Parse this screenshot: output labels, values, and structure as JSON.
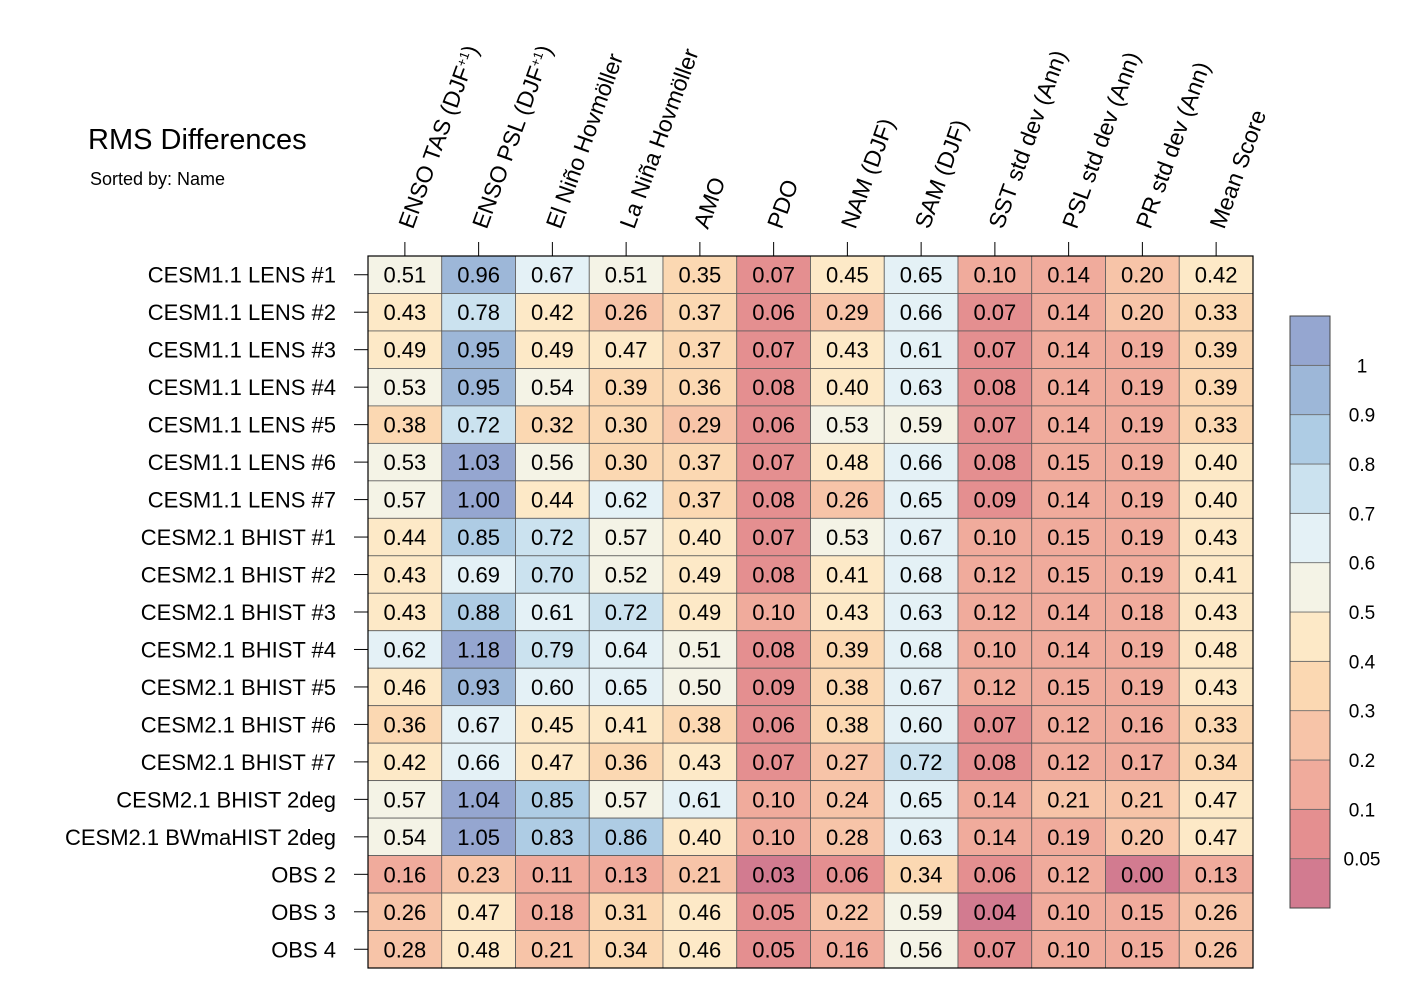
{
  "chart_data": {
    "type": "heatmap",
    "title": "RMS Differences",
    "subtitle": "Sorted by: Name",
    "columns": [
      "ENSO TAS (DJF+1)",
      "ENSO PSL (DJF+1)",
      "El Niño Hovmöller",
      "La Niña Hovmöller",
      "AMO",
      "PDO",
      "NAM (DJF)",
      "SAM (DJF)",
      "SST std dev (Ann)",
      "PSL std dev (Ann)",
      "PR std dev (Ann)",
      "Mean Score"
    ],
    "columns_display": [
      {
        "base": "ENSO TAS (DJF",
        "sup": "+1",
        "tail": ")"
      },
      {
        "base": "ENSO PSL (DJF",
        "sup": "+1",
        "tail": ")"
      },
      {
        "base": "El Niño Hovmöller",
        "sup": "",
        "tail": ""
      },
      {
        "base": "La Niña Hovmöller",
        "sup": "",
        "tail": ""
      },
      {
        "base": "AMO",
        "sup": "",
        "tail": ""
      },
      {
        "base": "PDO",
        "sup": "",
        "tail": ""
      },
      {
        "base": "NAM (DJF)",
        "sup": "",
        "tail": ""
      },
      {
        "base": "SAM (DJF)",
        "sup": "",
        "tail": ""
      },
      {
        "base": "SST std dev (Ann)",
        "sup": "",
        "tail": ""
      },
      {
        "base": "PSL std dev (Ann)",
        "sup": "",
        "tail": ""
      },
      {
        "base": "PR std dev (Ann)",
        "sup": "",
        "tail": ""
      },
      {
        "base": "Mean Score",
        "sup": "",
        "tail": ""
      }
    ],
    "rows": [
      "CESM1.1 LENS #1",
      "CESM1.1 LENS #2",
      "CESM1.1 LENS #3",
      "CESM1.1 LENS #4",
      "CESM1.1 LENS #5",
      "CESM1.1 LENS #6",
      "CESM1.1 LENS #7",
      "CESM2.1 BHIST #1",
      "CESM2.1 BHIST #2",
      "CESM2.1 BHIST #3",
      "CESM2.1 BHIST #4",
      "CESM2.1 BHIST #5",
      "CESM2.1 BHIST #6",
      "CESM2.1 BHIST #7",
      "CESM2.1 BHIST 2deg",
      "CESM2.1 BWmaHIST 2deg",
      "OBS 2",
      "OBS 3",
      "OBS 4"
    ],
    "values": [
      [
        "0.51",
        "0.96",
        "0.67",
        "0.51",
        "0.35",
        "0.07",
        "0.45",
        "0.65",
        "0.10",
        "0.14",
        "0.20",
        "0.42"
      ],
      [
        "0.43",
        "0.78",
        "0.42",
        "0.26",
        "0.37",
        "0.06",
        "0.29",
        "0.66",
        "0.07",
        "0.14",
        "0.20",
        "0.33"
      ],
      [
        "0.49",
        "0.95",
        "0.49",
        "0.47",
        "0.37",
        "0.07",
        "0.43",
        "0.61",
        "0.07",
        "0.14",
        "0.19",
        "0.39"
      ],
      [
        "0.53",
        "0.95",
        "0.54",
        "0.39",
        "0.36",
        "0.08",
        "0.40",
        "0.63",
        "0.08",
        "0.14",
        "0.19",
        "0.39"
      ],
      [
        "0.38",
        "0.72",
        "0.32",
        "0.30",
        "0.29",
        "0.06",
        "0.53",
        "0.59",
        "0.07",
        "0.14",
        "0.19",
        "0.33"
      ],
      [
        "0.53",
        "1.03",
        "0.56",
        "0.30",
        "0.37",
        "0.07",
        "0.48",
        "0.66",
        "0.08",
        "0.15",
        "0.19",
        "0.40"
      ],
      [
        "0.57",
        "1.00",
        "0.44",
        "0.62",
        "0.37",
        "0.08",
        "0.26",
        "0.65",
        "0.09",
        "0.14",
        "0.19",
        "0.40"
      ],
      [
        "0.44",
        "0.85",
        "0.72",
        "0.57",
        "0.40",
        "0.07",
        "0.53",
        "0.67",
        "0.10",
        "0.15",
        "0.19",
        "0.43"
      ],
      [
        "0.43",
        "0.69",
        "0.70",
        "0.52",
        "0.49",
        "0.08",
        "0.41",
        "0.68",
        "0.12",
        "0.15",
        "0.19",
        "0.41"
      ],
      [
        "0.43",
        "0.88",
        "0.61",
        "0.72",
        "0.49",
        "0.10",
        "0.43",
        "0.63",
        "0.12",
        "0.14",
        "0.18",
        "0.43"
      ],
      [
        "0.62",
        "1.18",
        "0.79",
        "0.64",
        "0.51",
        "0.08",
        "0.39",
        "0.68",
        "0.10",
        "0.14",
        "0.19",
        "0.48"
      ],
      [
        "0.46",
        "0.93",
        "0.60",
        "0.65",
        "0.50",
        "0.09",
        "0.38",
        "0.67",
        "0.12",
        "0.15",
        "0.19",
        "0.43"
      ],
      [
        "0.36",
        "0.67",
        "0.45",
        "0.41",
        "0.38",
        "0.06",
        "0.38",
        "0.60",
        "0.07",
        "0.12",
        "0.16",
        "0.33"
      ],
      [
        "0.42",
        "0.66",
        "0.47",
        "0.36",
        "0.43",
        "0.07",
        "0.27",
        "0.72",
        "0.08",
        "0.12",
        "0.17",
        "0.34"
      ],
      [
        "0.57",
        "1.04",
        "0.85",
        "0.57",
        "0.61",
        "0.10",
        "0.24",
        "0.65",
        "0.14",
        "0.21",
        "0.21",
        "0.47"
      ],
      [
        "0.54",
        "1.05",
        "0.83",
        "0.86",
        "0.40",
        "0.10",
        "0.28",
        "0.63",
        "0.14",
        "0.19",
        "0.20",
        "0.47"
      ],
      [
        "0.16",
        "0.23",
        "0.11",
        "0.13",
        "0.21",
        "0.03",
        "0.06",
        "0.34",
        "0.06",
        "0.12",
        "0.00",
        "0.13"
      ],
      [
        "0.26",
        "0.47",
        "0.18",
        "0.31",
        "0.46",
        "0.05",
        "0.22",
        "0.59",
        "0.04",
        "0.10",
        "0.15",
        "0.26"
      ],
      [
        "0.28",
        "0.48",
        "0.21",
        "0.34",
        "0.46",
        "0.05",
        "0.16",
        "0.56",
        "0.07",
        "0.10",
        "0.15",
        "0.26"
      ]
    ],
    "colorbar": {
      "levels": [
        0.05,
        0.1,
        0.2,
        0.3,
        0.4,
        0.5,
        0.6,
        0.7,
        0.8,
        0.9,
        1
      ],
      "labels": [
        "0.05",
        "0.1",
        "0.2",
        "0.3",
        "0.4",
        "0.5",
        "0.6",
        "0.7",
        "0.8",
        "0.9",
        "1"
      ],
      "colors": [
        "#d27b90",
        "#e48f90",
        "#f0ab9c",
        "#f7c4a8",
        "#fbd8b2",
        "#fde9c7",
        "#f4f3e6",
        "#e4f1f6",
        "#cbe2ef",
        "#aecce4",
        "#9db7d8",
        "#95a6d0"
      ],
      "placement": "right"
    }
  }
}
